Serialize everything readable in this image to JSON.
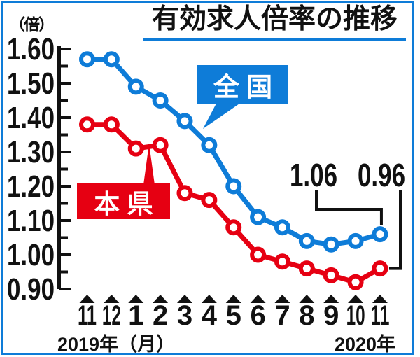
{
  "colors": {
    "national": "#0e7cd8",
    "prefecture": "#e60012",
    "ink": "#111111",
    "background": "#ffffff"
  },
  "header": {
    "unit_label": "（倍）",
    "title": "有効求人倍率の推移"
  },
  "series_labels": {
    "national": "全 国",
    "prefecture": "本 県"
  },
  "x_axis": {
    "left_caption": "2019年（月）",
    "right_caption": "2020年"
  },
  "chart_data": {
    "type": "line",
    "title": "有効求人倍率の推移",
    "unit": "倍",
    "categories": [
      "11",
      "12",
      "1",
      "2",
      "3",
      "4",
      "5",
      "6",
      "7",
      "8",
      "9",
      "10",
      "11"
    ],
    "x_period_labels": {
      "left": "2019年（月）",
      "right": "2020年"
    },
    "y_ticks": [
      "1.60",
      "1.50",
      "1.40",
      "1.30",
      "1.20",
      "1.10",
      "1.00",
      "0.90"
    ],
    "ylim": [
      0.9,
      1.6
    ],
    "grid": false,
    "legend_position": "inline-callout-boxes",
    "series": [
      {
        "name": "全国",
        "color": "#0e7cd8",
        "values": [
          1.57,
          1.57,
          1.49,
          1.45,
          1.39,
          1.32,
          1.2,
          1.11,
          1.08,
          1.04,
          1.03,
          1.04,
          1.06
        ]
      },
      {
        "name": "本県",
        "color": "#e60012",
        "values": [
          1.38,
          1.38,
          1.31,
          1.32,
          1.18,
          1.16,
          1.08,
          1.0,
          0.98,
          0.96,
          0.94,
          0.92,
          0.96
        ]
      }
    ],
    "annotations": [
      {
        "text": "1.06",
        "series": "全国",
        "category_index": 12
      },
      {
        "text": "0.96",
        "series": "本県",
        "category_index": 12
      }
    ]
  }
}
